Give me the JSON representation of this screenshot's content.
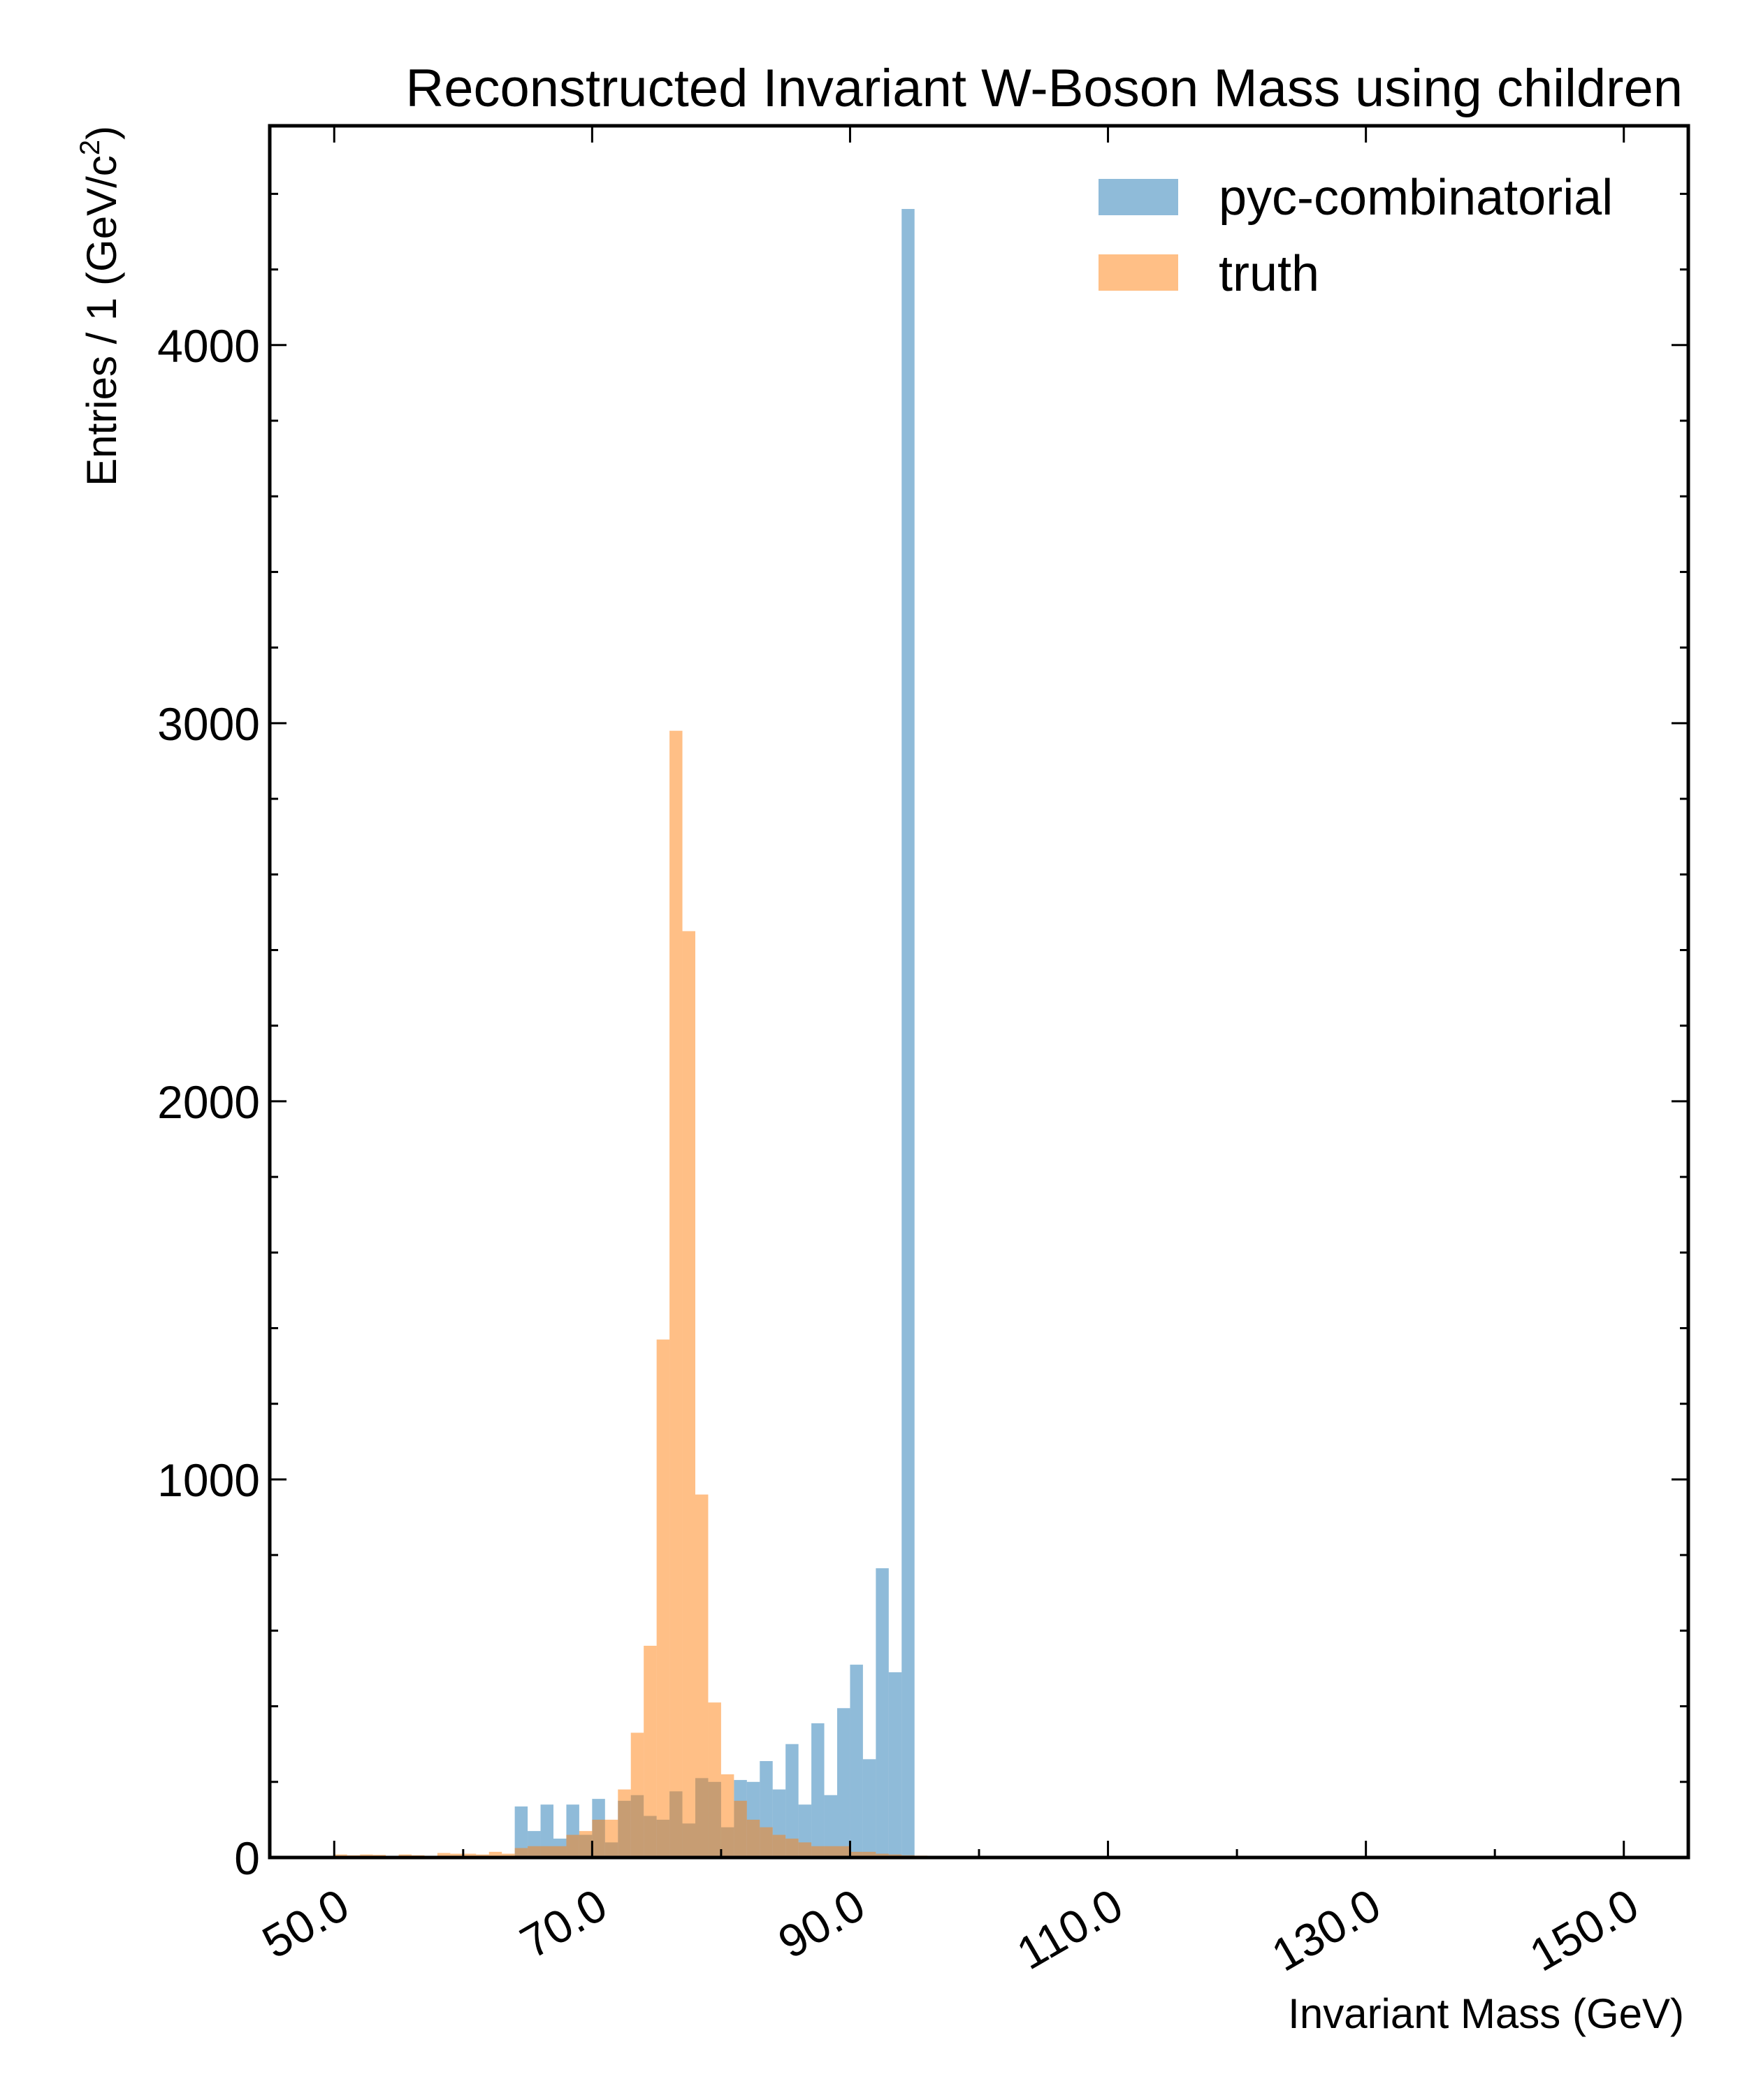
{
  "chart_data": {
    "type": "bar",
    "title": "Reconstructed Invariant W-Boson Mass using children",
    "xlabel": "Invariant Mass (GeV)",
    "ylabel": {
      "main": "Entries  / 1 (GeV/c",
      "superscript": "2",
      "suffix": ")"
    },
    "xlim": [
      45,
      155
    ],
    "ylim": [
      0,
      4580
    ],
    "x_ticks": [
      "50.0",
      "70.0",
      "90.0",
      "110.0",
      "130.0",
      "150.0"
    ],
    "y_ticks": [
      "0",
      "1000",
      "2000",
      "3000",
      "4000"
    ],
    "bin_width": 1,
    "legend_position": "top-right",
    "grid": false,
    "series": [
      {
        "name": "pyc-combinatorial",
        "color": "#1f77b4",
        "bin_start": 64,
        "values": [
          135,
          70,
          140,
          50,
          140,
          60,
          155,
          40,
          150,
          165,
          110,
          100,
          175,
          90,
          210,
          200,
          80,
          205,
          200,
          255,
          180,
          300,
          140,
          355,
          165,
          395,
          510,
          260,
          765,
          490,
          4360
        ]
      },
      {
        "name": "truth",
        "color": "#ff7f0e",
        "bin_start": 50,
        "values": [
          8,
          6,
          8,
          7,
          4,
          8,
          6,
          4,
          12,
          10,
          10,
          8,
          15,
          10,
          25,
          30,
          30,
          30,
          60,
          70,
          100,
          100,
          180,
          330,
          560,
          1370,
          2980,
          2450,
          960,
          410,
          220,
          150,
          100,
          80,
          60,
          50,
          40,
          30,
          30,
          30,
          15,
          15,
          10,
          8,
          6,
          5,
          4,
          3,
          2,
          2,
          2,
          2,
          2,
          1,
          1,
          1,
          1,
          1,
          0
        ]
      }
    ]
  }
}
